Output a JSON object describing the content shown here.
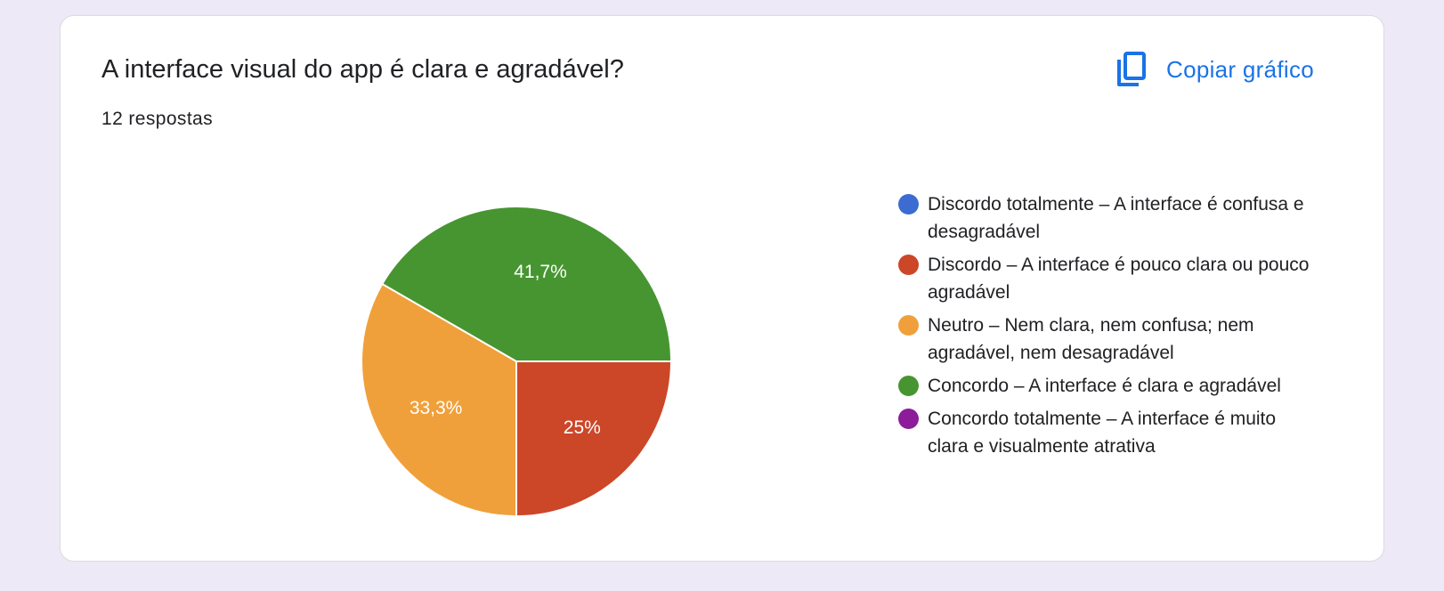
{
  "card": {
    "title": "A interface visual do app é clara e agradável?",
    "responses": "12 respostas",
    "copy_label": "Copiar gráfico",
    "copy_icon": "copy-icon"
  },
  "colors": {
    "accent": "#1a73e8",
    "discordo_totalmente": "#3c6bd2",
    "discordo": "#cc4628",
    "neutro": "#f0a03a",
    "concordo": "#479531",
    "concordo_totalmente": "#8c1c99"
  },
  "chart_data": {
    "type": "pie",
    "total": 12,
    "slices": [
      {
        "name": "Discordo totalmente – A interface é confusa e desagradável",
        "value": 0,
        "percent": 0,
        "label": "",
        "color": "#3c6bd2"
      },
      {
        "name": "Discordo – A interface é pouco clara ou pouco agradável",
        "value": 3,
        "percent": 25,
        "label": "25%",
        "color": "#cc4628"
      },
      {
        "name": "Neutro – Nem clara, nem confusa; nem agradável, nem desagradável",
        "value": 4,
        "percent": 33.3,
        "label": "33,3%",
        "color": "#f0a03a"
      },
      {
        "name": "Concordo – A interface é clara e agradável",
        "value": 5,
        "percent": 41.7,
        "label": "41,7%",
        "color": "#479531"
      },
      {
        "name": "Concordo totalmente – A interface é muito clara e visualmente atrativa",
        "value": 0,
        "percent": 0,
        "label": "",
        "color": "#8c1c99"
      }
    ],
    "legend_position": "right"
  }
}
